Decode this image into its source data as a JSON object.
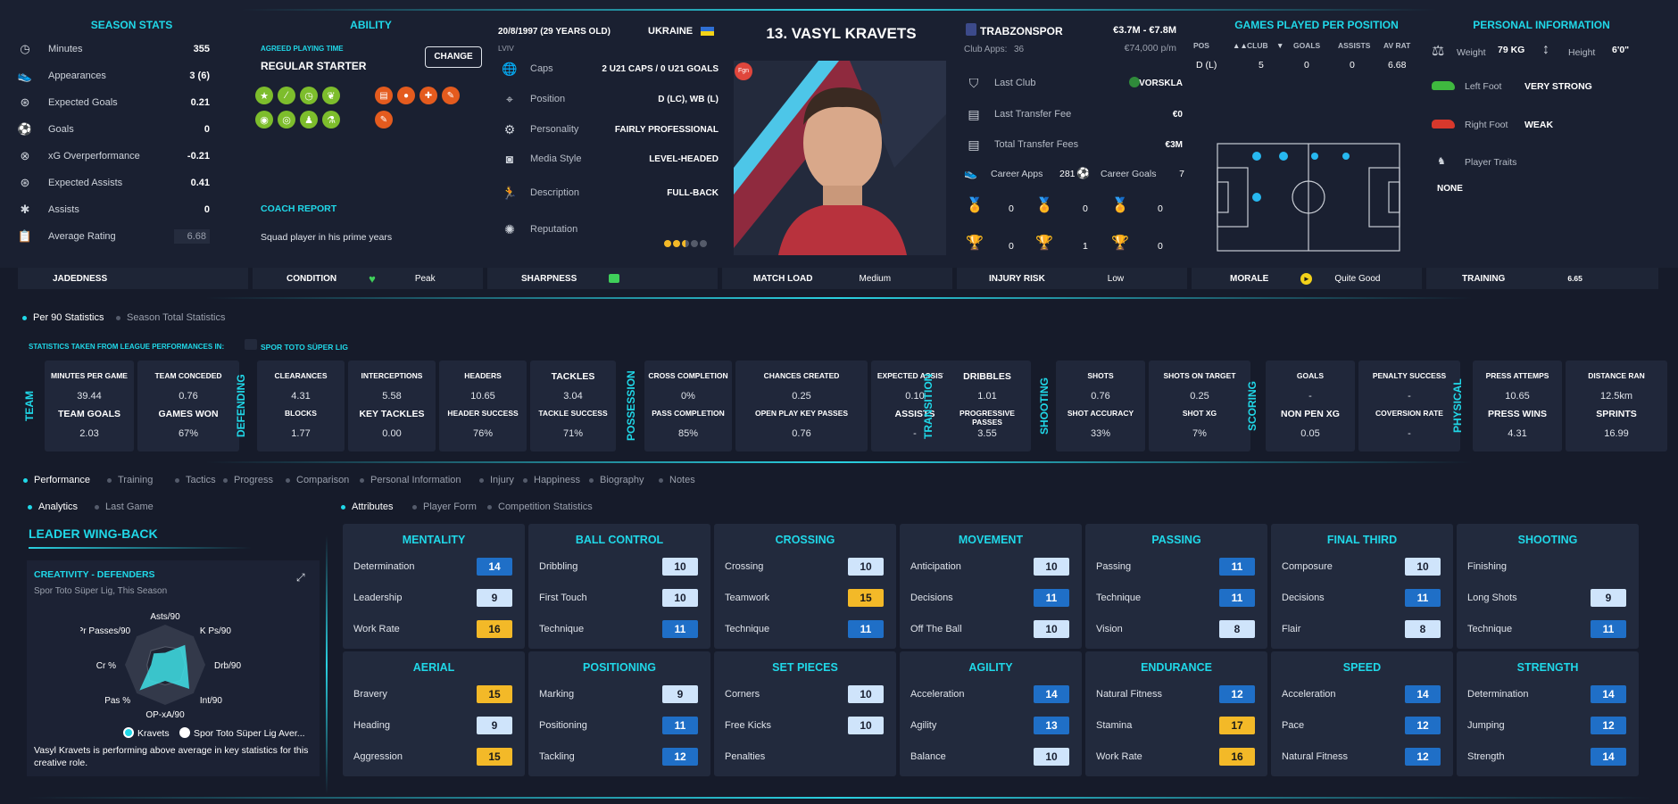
{
  "season_stats": {
    "title": "SEASON STATS",
    "rows": [
      {
        "icon": "stopwatch-icon",
        "label": "Minutes",
        "value": "355"
      },
      {
        "icon": "boot-icon",
        "label": "Appearances",
        "value": "3 (6)"
      },
      {
        "icon": "target-icon",
        "label": "Expected Goals",
        "value": "0.21"
      },
      {
        "icon": "ball-icon",
        "label": "Goals",
        "value": "0"
      },
      {
        "icon": "xg-icon",
        "label": "xG Overperformance",
        "value": "-0.21"
      },
      {
        "icon": "assist-target-icon",
        "label": "Expected Assists",
        "value": "0.41"
      },
      {
        "icon": "assist-icon",
        "label": "Assists",
        "value": "0"
      },
      {
        "icon": "clipboard-icon",
        "label": "Average Rating",
        "value": "6.68"
      }
    ]
  },
  "ability": {
    "title": "ABILITY",
    "playing_time_label": "AGREED PLAYING TIME",
    "playing_time": "REGULAR STARTER",
    "change_button": "CHANGE",
    "coach_report_title": "COACH REPORT",
    "coach_report": "Squad player in his prime years"
  },
  "bio": {
    "dob": "20/8/1997 (29 YEARS OLD)",
    "nationality": "UKRAINE",
    "birthplace": "LVIV",
    "rows": [
      {
        "icon": "globe-icon",
        "label": "Caps",
        "value": "2 U21 CAPS / 0 U21 GOALS"
      },
      {
        "icon": "position-icon",
        "label": "Position",
        "value": "D (LC), WB (L)"
      },
      {
        "icon": "cogs-icon",
        "label": "Personality",
        "value": "FAIRLY PROFESSIONAL"
      },
      {
        "icon": "camera-icon",
        "label": "Media Style",
        "value": "LEVEL-HEADED"
      },
      {
        "icon": "running-icon",
        "label": "Description",
        "value": "FULL-BACK"
      },
      {
        "icon": "rosette-icon",
        "label": "Reputation",
        "value": ""
      }
    ]
  },
  "player": {
    "name": "13. VASYL KRAVETS",
    "badge": "Fgn"
  },
  "club": {
    "name": "TRABZONSPOR",
    "apps_label": "Club Apps:",
    "apps": "36",
    "value_range": "€3.7M - €7.8M",
    "wage": "€74,000 p/m",
    "rows": [
      {
        "icon": "shield-icon",
        "label": "Last Club",
        "value": "VORSKLA"
      },
      {
        "icon": "money-icon",
        "label": "Last Transfer Fee",
        "value": "€0"
      },
      {
        "icon": "money-icon",
        "label": "Total Transfer Fees",
        "value": "€3M"
      }
    ],
    "career_apps_label": "Career Apps",
    "career_apps": "281",
    "career_goals_label": "Career Goals",
    "career_goals": "7",
    "medals": [
      "0",
      "0",
      "0"
    ],
    "trophies": [
      "0",
      "1",
      "0"
    ]
  },
  "games_played": {
    "title": "GAMES PLAYED PER POSITION",
    "headers": [
      "POS",
      "CLUB",
      "GOALS",
      "ASSISTS",
      "AV RAT"
    ],
    "row": [
      "D (L)",
      "5",
      "0",
      "0",
      "6.68"
    ]
  },
  "personal": {
    "title": "PERSONAL INFORMATION",
    "weight_label": "Weight",
    "weight": "79 KG",
    "height_label": "Height",
    "height": "6'0\"",
    "left_foot_label": "Left Foot",
    "left_foot": "VERY STRONG",
    "right_foot_label": "Right Foot",
    "right_foot": "WEAK",
    "traits_label": "Player Traits",
    "traits": "NONE"
  },
  "condition_bar": {
    "jadedness": "JADEDNESS",
    "condition": "CONDITION",
    "condition_val": "Peak",
    "sharpness": "SHARPNESS",
    "match_load": "MATCH LOAD",
    "match_load_val": "Medium",
    "injury_risk": "INJURY RISK",
    "injury_risk_val": "Low",
    "morale": "MORALE",
    "morale_val": "Quite Good",
    "training": "TRAINING",
    "training_val": "6.65"
  },
  "stats_tabs": {
    "per90": "Per 90 Statistics",
    "total": "Season Total Statistics",
    "taken_from": "STATISTICS TAKEN FROM LEAGUE PERFORMANCES IN:",
    "league": "SPOR TOTO SÜPER LIG"
  },
  "stat_groups": {
    "team": {
      "label": "TEAM",
      "items": [
        [
          "MINUTES PER GAME",
          "39.44"
        ],
        [
          "TEAM CONCEDED",
          "0.76"
        ],
        [
          "TEAM GOALS",
          "2.03"
        ],
        [
          "GAMES WON",
          "67%"
        ]
      ]
    },
    "defending": {
      "label": "DEFENDING",
      "items": [
        [
          "CLEARANCES",
          "4.31"
        ],
        [
          "INTERCEPTIONS",
          "5.58"
        ],
        [
          "HEADERS",
          "10.65"
        ],
        [
          "TACKLES",
          "3.04"
        ],
        [
          "BLOCKS",
          "1.77"
        ],
        [
          "KEY TACKLES",
          "0.00"
        ],
        [
          "HEADER SUCCESS",
          "76%"
        ],
        [
          "TACKLE SUCCESS",
          "71%"
        ]
      ]
    },
    "possession": {
      "label": "POSSESSION",
      "items": [
        [
          "CROSS COMPLETION",
          "0%"
        ],
        [
          "CHANCES CREATED",
          "0.25"
        ],
        [
          "EXPECTED ASSISTS",
          "0.10"
        ],
        [
          "PASS COMPLETION",
          "85%"
        ],
        [
          "OPEN PLAY KEY PASSES",
          "0.76"
        ],
        [
          "ASSISTS",
          "-"
        ]
      ]
    },
    "transition": {
      "label": "TRANSITION",
      "items": [
        [
          "DRIBBLES",
          "1.01"
        ],
        [
          "PROGRESSIVE PASSES",
          "3.55"
        ]
      ]
    },
    "shooting": {
      "label": "SHOOTING",
      "items": [
        [
          "SHOTS",
          "0.76"
        ],
        [
          "SHOTS ON TARGET",
          "0.25"
        ],
        [
          "SHOT ACCURACY",
          "33%"
        ],
        [
          "SHOT XG",
          "7%"
        ]
      ]
    },
    "scoring": {
      "label": "SCORING",
      "items": [
        [
          "GOALS",
          "-"
        ],
        [
          "PENALTY SUCCESS",
          "-"
        ],
        [
          "NON PEN XG",
          "0.05"
        ],
        [
          "COVERSION RATE",
          "-"
        ]
      ]
    },
    "physical": {
      "label": "PHYSICAL",
      "items": [
        [
          "PRESS ATTEMPS",
          "10.65"
        ],
        [
          "DISTANCE RAN",
          "12.5km"
        ],
        [
          "PRESS WINS",
          "4.31"
        ],
        [
          "SPRINTS",
          "16.99"
        ]
      ]
    }
  },
  "main_tabs": [
    "Performance",
    "Training",
    "Tactics",
    "Progress",
    "Comparison",
    "Personal Information",
    "Injury",
    "Happiness",
    "Biography",
    "Notes"
  ],
  "sub_tabs": [
    "Analytics",
    "Last Game"
  ],
  "attr_tabs": [
    "Attributes",
    "Player Form",
    "Competition Statistics"
  ],
  "analytics": {
    "role": "LEADER WING-BACK",
    "chart_title": "CREATIVITY - DEFENDERS",
    "chart_sub": "Spor Toto Süper Lig, This Season",
    "axes": [
      "Asts/90",
      "K Ps/90",
      "Drb/90",
      "Int/90",
      "OP-xA/90",
      "Pas %",
      "Cr %",
      "Pr Passes/90"
    ],
    "legend": [
      "Kravets",
      "Spor Toto Süper Lig Aver..."
    ],
    "summary": "Vasyl Kravets is performing above average in key statistics for this creative role."
  },
  "attributes": [
    {
      "title": "MENTALITY",
      "rows": [
        [
          "Determination",
          "14",
          "hi"
        ],
        [
          "Leadership",
          "9",
          "lo"
        ],
        [
          "Work Rate",
          "16",
          "y"
        ]
      ]
    },
    {
      "title": "BALL CONTROL",
      "rows": [
        [
          "Dribbling",
          "10",
          "lo"
        ],
        [
          "First Touch",
          "10",
          "lo"
        ],
        [
          "Technique",
          "11",
          "hi"
        ]
      ]
    },
    {
      "title": "CROSSING",
      "rows": [
        [
          "Crossing",
          "10",
          "lo"
        ],
        [
          "Teamwork",
          "15",
          "y"
        ],
        [
          "Technique",
          "11",
          "hi"
        ]
      ]
    },
    {
      "title": "MOVEMENT",
      "rows": [
        [
          "Anticipation",
          "10",
          "lo"
        ],
        [
          "Decisions",
          "11",
          "hi"
        ],
        [
          "Off The Ball",
          "10",
          "lo"
        ]
      ]
    },
    {
      "title": "PASSING",
      "rows": [
        [
          "Passing",
          "11",
          "hi"
        ],
        [
          "Technique",
          "11",
          "hi"
        ],
        [
          "Vision",
          "8",
          "lo"
        ]
      ]
    },
    {
      "title": "FINAL THIRD",
      "rows": [
        [
          "Composure",
          "10",
          "lo"
        ],
        [
          "Decisions",
          "11",
          "hi"
        ],
        [
          "Flair",
          "8",
          "lo"
        ]
      ]
    },
    {
      "title": "SHOOTING",
      "rows": [
        [
          "Finishing",
          "",
          "none"
        ],
        [
          "Long Shots",
          "9",
          "lo"
        ],
        [
          "Technique",
          "11",
          "hi"
        ]
      ]
    },
    {
      "title": "AERIAL",
      "rows": [
        [
          "Bravery",
          "15",
          "y"
        ],
        [
          "Heading",
          "9",
          "lo"
        ],
        [
          "Aggression",
          "15",
          "y"
        ]
      ]
    },
    {
      "title": "POSITIONING",
      "rows": [
        [
          "Marking",
          "9",
          "lo"
        ],
        [
          "Positioning",
          "11",
          "hi"
        ],
        [
          "Tackling",
          "12",
          "hi"
        ]
      ]
    },
    {
      "title": "SET PIECES",
      "rows": [
        [
          "Corners",
          "10",
          "lo"
        ],
        [
          "Free Kicks",
          "10",
          "lo"
        ],
        [
          "Penalties",
          "",
          "none"
        ]
      ]
    },
    {
      "title": "AGILITY",
      "rows": [
        [
          "Acceleration",
          "14",
          "hi"
        ],
        [
          "Agility",
          "13",
          "hi"
        ],
        [
          "Balance",
          "10",
          "lo"
        ]
      ]
    },
    {
      "title": "ENDURANCE",
      "rows": [
        [
          "Natural Fitness",
          "12",
          "hi"
        ],
        [
          "Stamina",
          "17",
          "y"
        ],
        [
          "Work Rate",
          "16",
          "y"
        ]
      ]
    },
    {
      "title": "SPEED",
      "rows": [
        [
          "Acceleration",
          "14",
          "hi"
        ],
        [
          "Pace",
          "12",
          "hi"
        ],
        [
          "Natural Fitness",
          "12",
          "hi"
        ]
      ]
    },
    {
      "title": "STRENGTH",
      "rows": [
        [
          "Determination",
          "14",
          "hi"
        ],
        [
          "Jumping",
          "12",
          "hi"
        ],
        [
          "Strength",
          "14",
          "hi"
        ]
      ]
    }
  ]
}
